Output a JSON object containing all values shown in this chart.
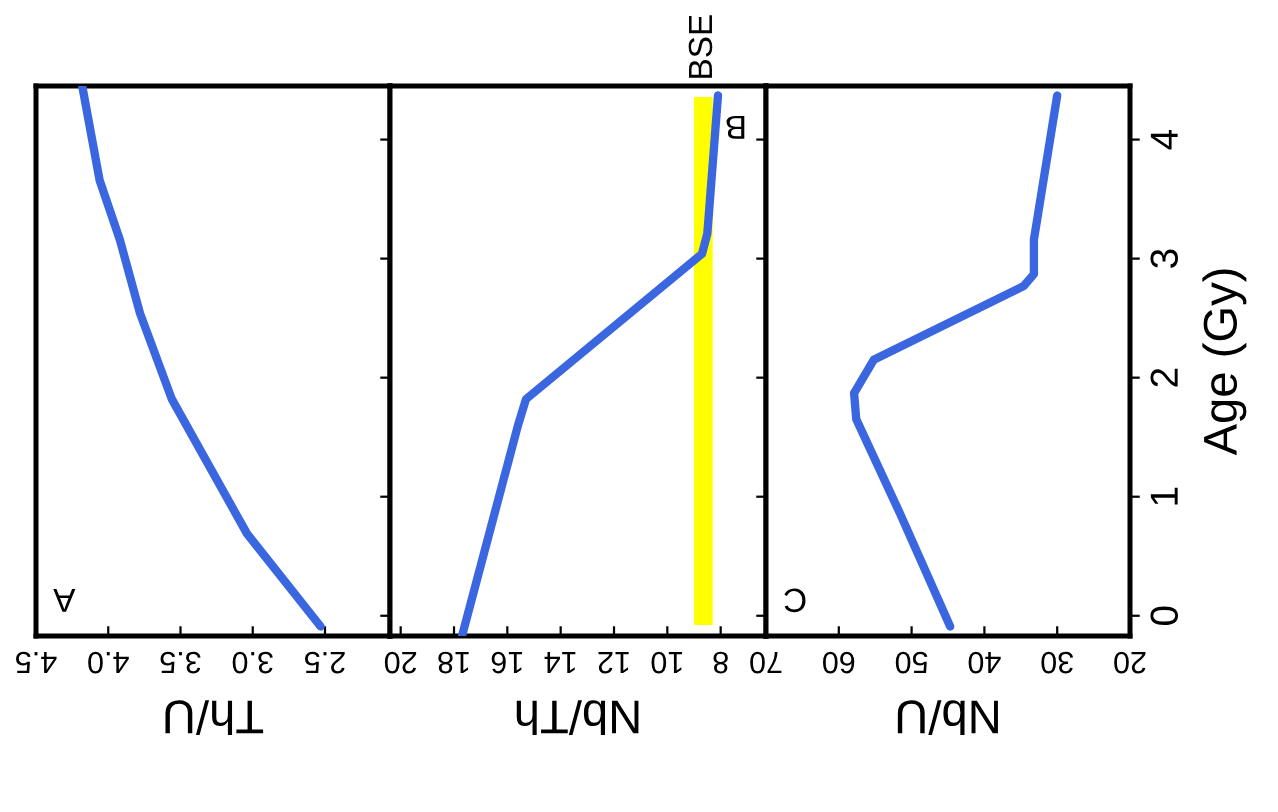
{
  "chart_data": [
    {
      "type": "line",
      "xlabel": "Th/U",
      "annotations": [
        "A"
      ],
      "xlim": [
        4.5,
        2.05
      ],
      "xticks": [
        {
          "value": 4.5,
          "label": "4.5"
        },
        {
          "value": 4.0,
          "label": "4.0"
        },
        {
          "value": 3.5,
          "label": "3.5"
        },
        {
          "value": 3.0,
          "label": "3.0"
        },
        {
          "value": 2.5,
          "label": "2.5"
        }
      ],
      "ylim": [
        -0.17,
        4.45
      ],
      "yticks": [
        {
          "value": 0,
          "label": null
        },
        {
          "value": 1,
          "label": null
        },
        {
          "value": 2,
          "label": null
        },
        {
          "value": 3,
          "label": null
        },
        {
          "value": 4,
          "label": null
        }
      ],
      "tick_labels": "x",
      "grid": false,
      "legend": false,
      "series": [
        {
          "color": "#3a66e0",
          "x": [
            2.53,
            3.04,
            3.56,
            3.78,
            3.92,
            4.06,
            4.18
          ],
          "values": [
            -0.09,
            0.69,
            1.82,
            2.54,
            3.16,
            3.66,
            4.45
          ]
        }
      ]
    },
    {
      "type": "line",
      "xlabel": "Nb/Th",
      "annotations": [
        "B"
      ],
      "xlim": [
        20.4,
        6.3
      ],
      "xticks": [
        20,
        18,
        16,
        14,
        12,
        10,
        8
      ],
      "ylim": [
        -0.17,
        4.45
      ],
      "yticks": [
        {
          "value": 0,
          "label": null
        },
        {
          "value": 1,
          "label": null
        },
        {
          "value": 2,
          "label": null
        },
        {
          "value": 3,
          "label": null
        },
        {
          "value": 4,
          "label": null
        }
      ],
      "tick_labels": "x",
      "grid": false,
      "legend": false,
      "bands": [
        {
          "axis": "x",
          "from": 9.0,
          "to": 8.3,
          "label": "BSE",
          "color": "#ffff00"
        }
      ],
      "series": [
        {
          "color": "#3a66e0",
          "x": [
            17.7,
            15.6,
            15.3,
            8.7,
            8.5,
            8.1
          ],
          "values": [
            -0.17,
            1.6,
            1.82,
            3.04,
            3.21,
            4.37
          ]
        }
      ]
    },
    {
      "type": "line",
      "xlabel": "Nb/U",
      "ylabel": "Age (Gy)",
      "annotations": [
        "C"
      ],
      "xlim": [
        70,
        20
      ],
      "xticks": [
        70,
        60,
        50,
        40,
        30,
        20
      ],
      "ylim": [
        -0.17,
        4.45
      ],
      "yticks": [
        0,
        1,
        2,
        3,
        4
      ],
      "grid": false,
      "legend": false,
      "series": [
        {
          "color": "#3a66e0",
          "x": [
            44.7,
            51.6,
            57.6,
            57.9,
            55.2,
            34.6,
            33.2,
            33.2,
            30
          ],
          "values": [
            -0.09,
            0.86,
            1.65,
            1.87,
            2.15,
            2.77,
            2.87,
            3.16,
            4.37
          ]
        }
      ]
    }
  ]
}
